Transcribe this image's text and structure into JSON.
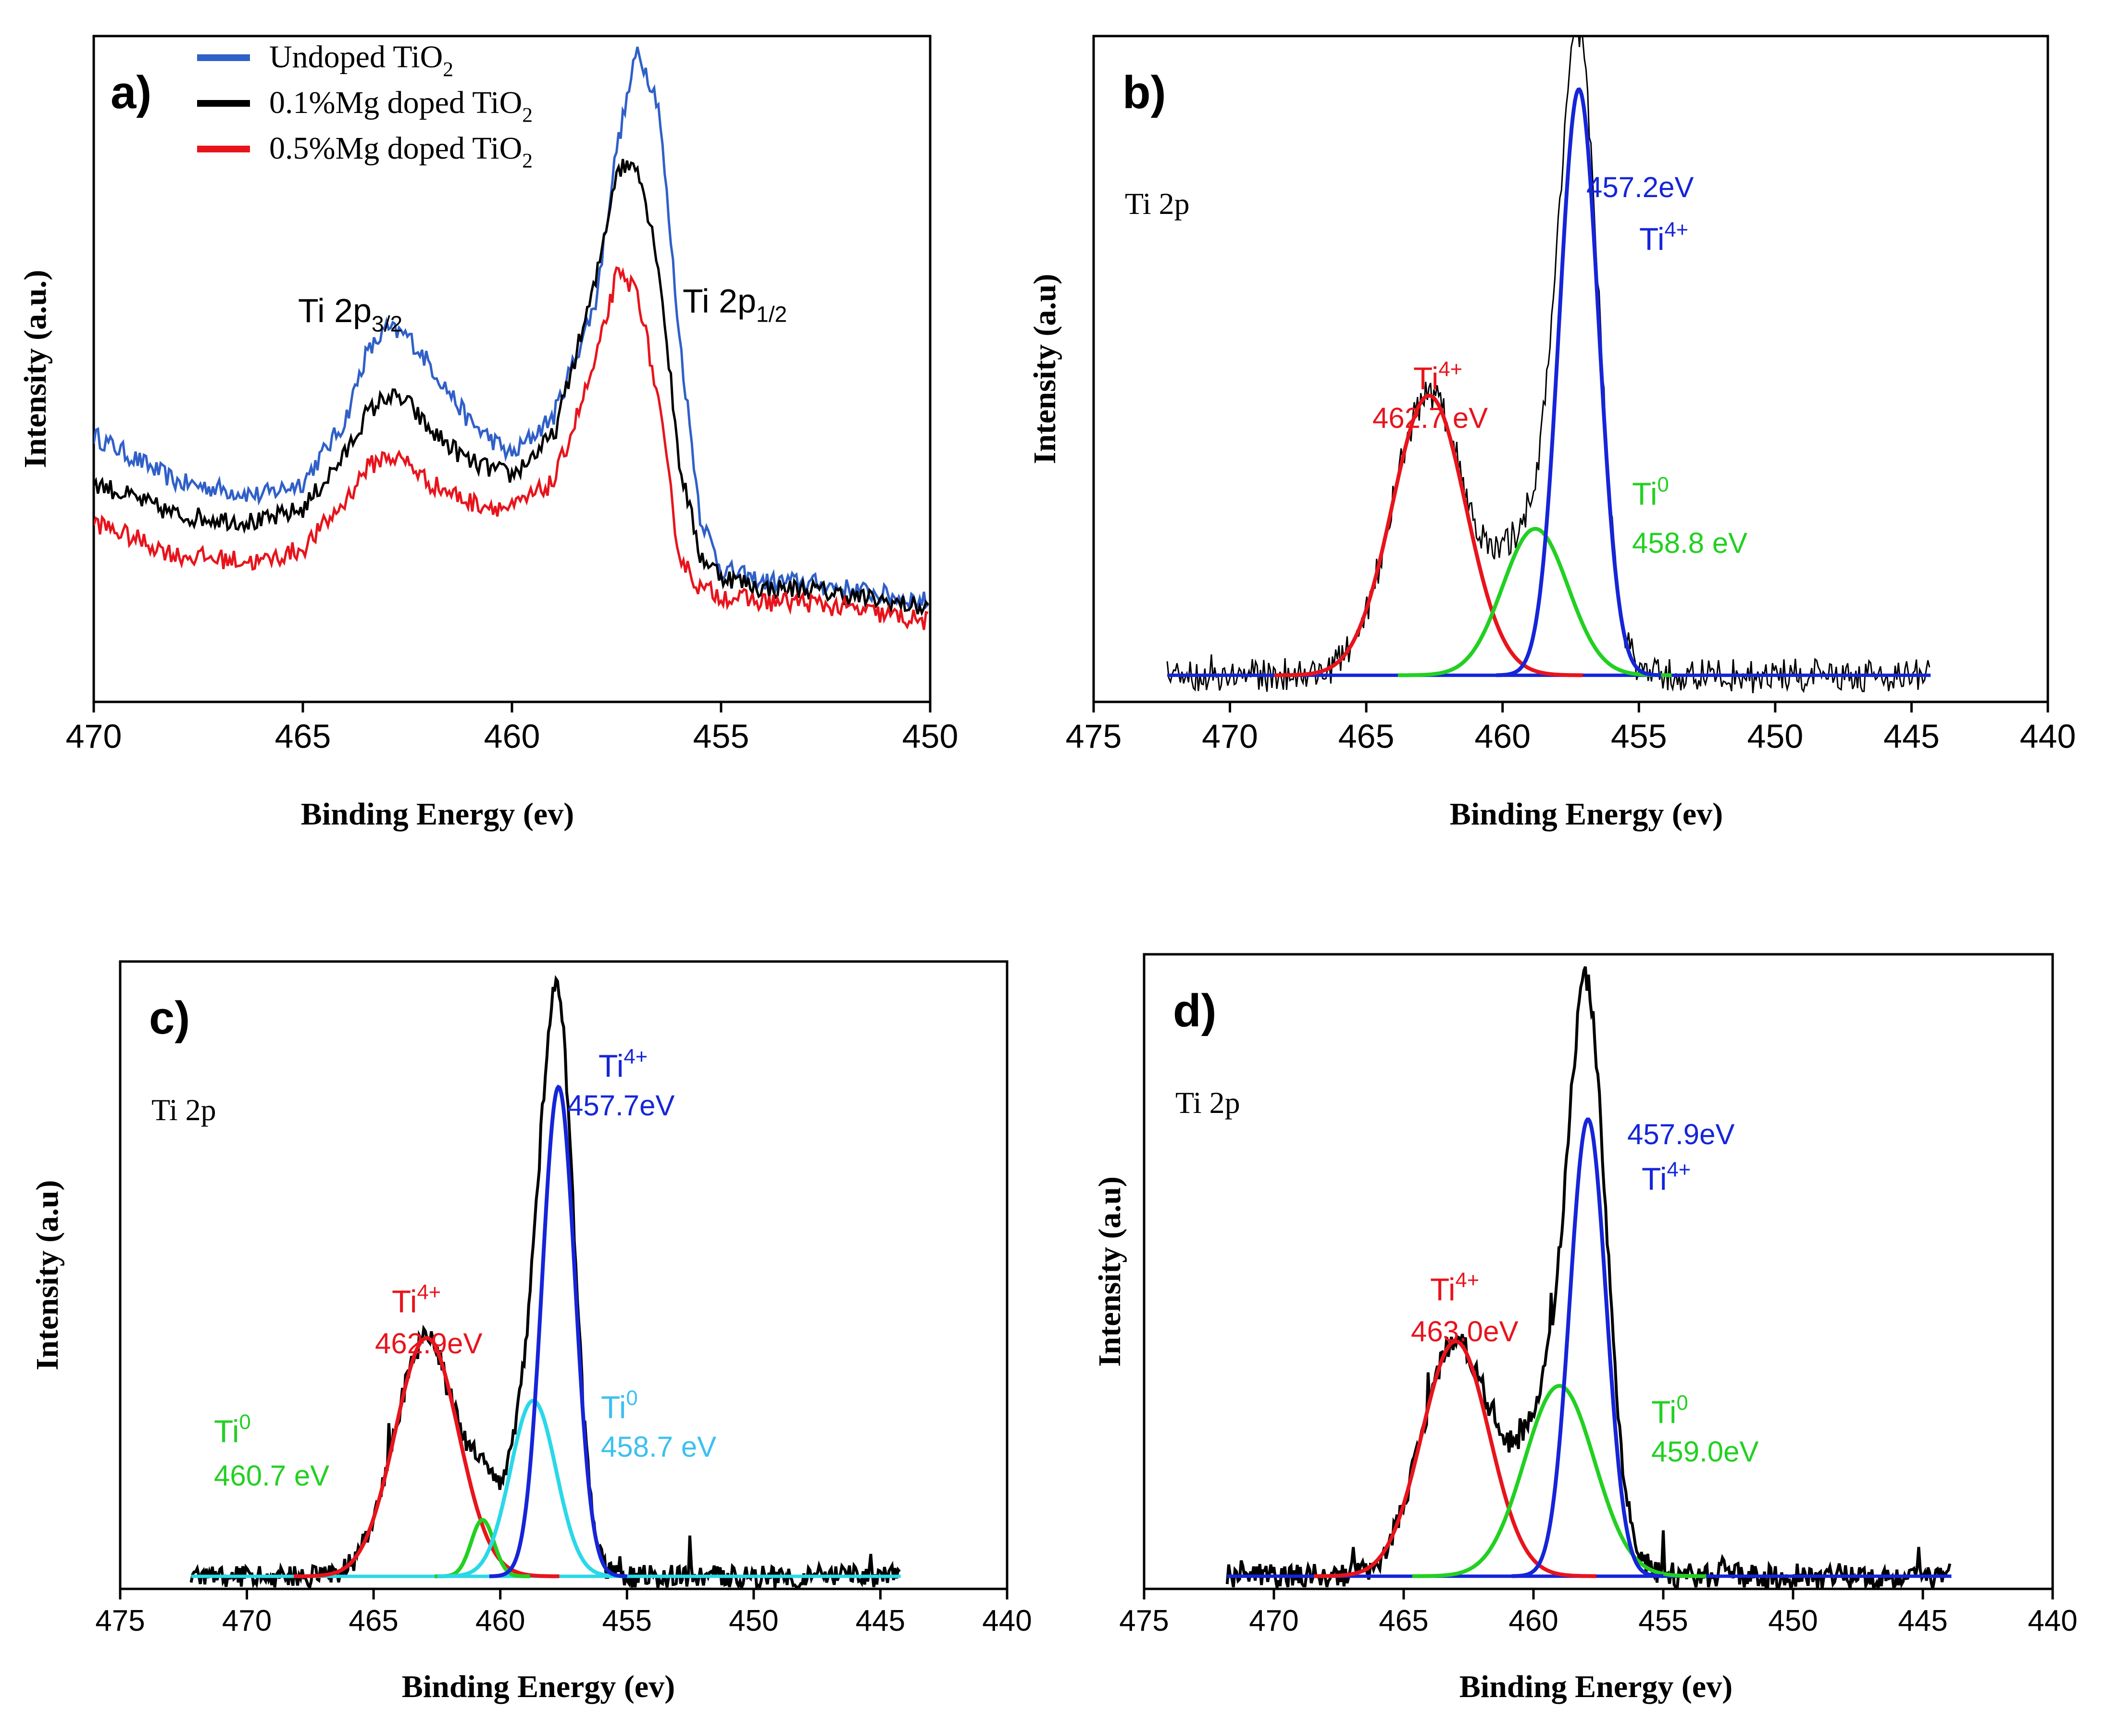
{
  "chart_data": [
    {
      "panel": "a)",
      "type": "line",
      "xlabel": "Binding Energy (ev)",
      "ylabel": "Intensity (a.u.)",
      "xlim": [
        470,
        450
      ],
      "ylim": [
        0,
        1
      ],
      "xticks": [
        470,
        465,
        460,
        455,
        450
      ],
      "legend_position": "top-left",
      "legend": [
        {
          "name": "Undoped TiO",
          "sub": "2",
          "color": "#3060c8"
        },
        {
          "name": "0.1%Mg doped TiO",
          "sub": "2",
          "color": "#000000"
        },
        {
          "name": "0.5%Mg doped TiO",
          "sub": "2",
          "color": "#e8141c"
        }
      ],
      "annotations": [
        {
          "text": "Ti 2p",
          "sub": "3/2",
          "x": 464.2,
          "y": 0.7,
          "color": "#000000"
        },
        {
          "text": "Ti 2p",
          "sub": "1/2",
          "x": 455.3,
          "y": 0.72,
          "color": "#000000"
        }
      ],
      "series": [
        {
          "name": "Undoped TiO2",
          "color": "#3060c8",
          "x": [
            470,
            468,
            466,
            465,
            464,
            463.5,
            463,
            462.5,
            462,
            461,
            460,
            459,
            458,
            457.5,
            457,
            456.5,
            456,
            455.5,
            455,
            454,
            453,
            452,
            451,
            450
          ],
          "y": [
            0.4,
            0.33,
            0.31,
            0.33,
            0.42,
            0.52,
            0.56,
            0.55,
            0.51,
            0.42,
            0.37,
            0.43,
            0.6,
            0.83,
            0.98,
            0.9,
            0.55,
            0.28,
            0.2,
            0.18,
            0.18,
            0.17,
            0.16,
            0.15
          ]
        },
        {
          "name": "0.1%Mg doped TiO2",
          "color": "#000000",
          "x": [
            470,
            468,
            466,
            465,
            464,
            463.5,
            463,
            462.5,
            462,
            461,
            460,
            459,
            458,
            457.5,
            457,
            456.5,
            456,
            455.5,
            455,
            454,
            453,
            452,
            451,
            450
          ],
          "y": [
            0.33,
            0.28,
            0.27,
            0.29,
            0.37,
            0.43,
            0.46,
            0.45,
            0.41,
            0.36,
            0.34,
            0.4,
            0.63,
            0.8,
            0.81,
            0.66,
            0.36,
            0.22,
            0.19,
            0.17,
            0.17,
            0.16,
            0.15,
            0.14
          ]
        },
        {
          "name": "0.5%Mg doped TiO2",
          "color": "#e8141c",
          "x": [
            470,
            468,
            466,
            465,
            464,
            463.5,
            463,
            462.5,
            462,
            461,
            460,
            459,
            458,
            457.5,
            457,
            456.5,
            456,
            455.5,
            455,
            454,
            453,
            452,
            451,
            450
          ],
          "y": [
            0.27,
            0.22,
            0.21,
            0.23,
            0.3,
            0.35,
            0.37,
            0.36,
            0.33,
            0.3,
            0.29,
            0.33,
            0.51,
            0.64,
            0.62,
            0.45,
            0.22,
            0.17,
            0.16,
            0.15,
            0.15,
            0.14,
            0.13,
            0.12
          ]
        }
      ]
    },
    {
      "panel": "b)",
      "type": "line",
      "xlabel": "Binding Energy (ev)",
      "ylabel": "Intensity (a.u)",
      "xlim": [
        475,
        440
      ],
      "ylim": [
        0,
        1
      ],
      "xticks": [
        475,
        470,
        465,
        460,
        455,
        450,
        445,
        440
      ],
      "corner_text": "Ti 2p",
      "raw": {
        "color": "#000000",
        "baseline": 0.04,
        "noise": 0.025,
        "xrange": [
          472.3,
          444.3
        ]
      },
      "baseline": 0.04,
      "baseline_color": "#1525d8",
      "components": [
        {
          "color": "#e8141c",
          "center": 462.7,
          "amp": 0.42,
          "sigma": 1.35
        },
        {
          "color": "#22d022",
          "center": 458.8,
          "amp": 0.22,
          "sigma": 1.2
        },
        {
          "color": "#1525d8",
          "center": 457.2,
          "amp": 0.88,
          "sigma": 0.72
        }
      ],
      "labels": [
        {
          "lines": [
            "Ti",
            "4+"
          ],
          "value": "462.7 eV",
          "color": "#e8141c"
        },
        {
          "lines": [
            "Ti",
            "0"
          ],
          "value": "458.8 eV",
          "color": "#22d022"
        },
        {
          "lines": [
            "Ti",
            "4+"
          ],
          "value": "457.2eV",
          "color": "#1525d8"
        }
      ]
    },
    {
      "panel": "c)",
      "type": "line",
      "xlabel": "Binding Energy (ev)",
      "ylabel": "Intensity (a.u)",
      "xlim": [
        475,
        440
      ],
      "ylim": [
        0,
        1
      ],
      "xticks": [
        475,
        470,
        465,
        460,
        455,
        450,
        445,
        440
      ],
      "corner_text": "Ti 2p",
      "raw": {
        "color": "#000000",
        "baseline": 0.02,
        "noise": 0.018,
        "xrange": [
          472.2,
          444.2
        ]
      },
      "baseline": 0.02,
      "baseline_color": "#2ad8e8",
      "components": [
        {
          "color": "#e8141c",
          "center": 462.9,
          "amp": 0.38,
          "sigma": 1.25
        },
        {
          "color": "#22d022",
          "center": 460.7,
          "amp": 0.09,
          "sigma": 0.45
        },
        {
          "color": "#2ad8e8",
          "center": 458.7,
          "amp": 0.28,
          "sigma": 0.9
        },
        {
          "color": "#1525d8",
          "center": 457.7,
          "amp": 0.78,
          "sigma": 0.65
        }
      ],
      "labels": [
        {
          "lines": [
            "Ti",
            "4+"
          ],
          "value": "462.9eV",
          "color": "#e8141c"
        },
        {
          "lines": [
            "Ti",
            "0"
          ],
          "value": "460.7 eV",
          "color": "#22d022"
        },
        {
          "lines": [
            "Ti",
            "0"
          ],
          "value": "458.7 eV",
          "color": "#3cc0f0"
        },
        {
          "lines": [
            "Ti",
            "4+"
          ],
          "value": "457.7eV",
          "color": "#1525d8"
        }
      ]
    },
    {
      "panel": "d)",
      "type": "line",
      "xlabel": "Binding Energy (ev)",
      "ylabel": "Intensity (a.u)",
      "xlim": [
        475,
        440
      ],
      "ylim": [
        0,
        1
      ],
      "xticks": [
        475,
        470,
        465,
        460,
        455,
        450,
        445,
        440
      ],
      "corner_text": "Ti 2p",
      "raw": {
        "color": "#000000",
        "baseline": 0.02,
        "noise": 0.02,
        "xrange": [
          471.8,
          443.9
        ]
      },
      "baseline": 0.02,
      "baseline_color": "#1525d8",
      "components": [
        {
          "color": "#e8141c",
          "center": 463.0,
          "amp": 0.37,
          "sigma": 1.3
        },
        {
          "color": "#22d022",
          "center": 459.0,
          "amp": 0.3,
          "sigma": 1.35
        },
        {
          "color": "#1525d8",
          "center": 457.9,
          "amp": 0.72,
          "sigma": 0.7
        }
      ],
      "labels": [
        {
          "lines": [
            "Ti",
            "4+"
          ],
          "value": "463.0eV",
          "color": "#e8141c"
        },
        {
          "lines": [
            "Ti",
            "0"
          ],
          "value": "459.0eV",
          "color": "#22d022"
        },
        {
          "lines": [
            "Ti",
            "4+"
          ],
          "value": "457.9eV",
          "color": "#1525d8"
        }
      ]
    }
  ]
}
